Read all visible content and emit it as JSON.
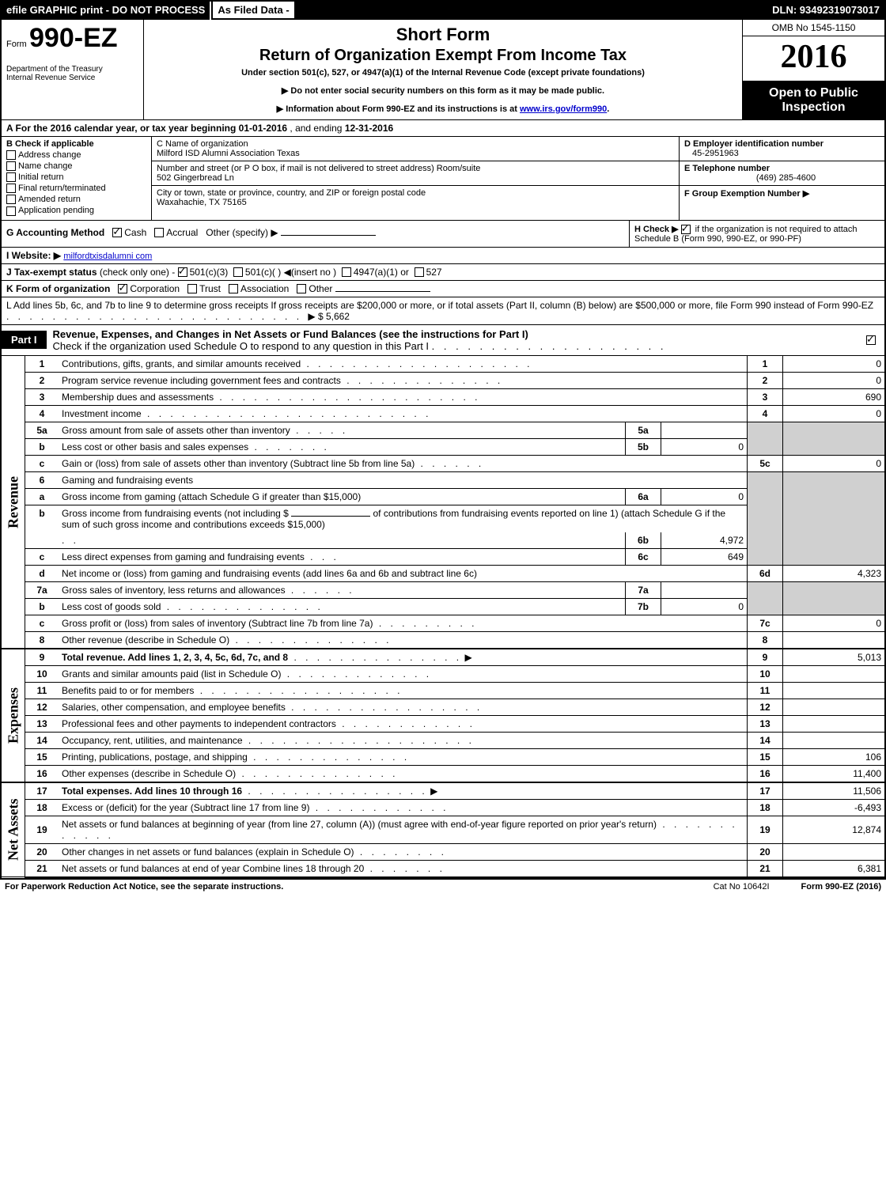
{
  "topbar": {
    "left": "efile GRAPHIC print - DO NOT PROCESS",
    "mid": "As Filed Data -",
    "right": "DLN: 93492319073017"
  },
  "header": {
    "form_word": "Form",
    "form_number": "990-EZ",
    "short_form": "Short Form",
    "return_title": "Return of Organization Exempt From Income Tax",
    "under": "Under section 501(c), 527, or 4947(a)(1) of the Internal Revenue Code (except private foundations)",
    "notice1": "▶ Do not enter social security numbers on this form as it may be made public.",
    "notice2": "▶ Information about Form 990-EZ and its instructions is at ",
    "notice2_link": "www.irs.gov/form990",
    "dept1": "Department of the Treasury",
    "dept2": "Internal Revenue Service",
    "omb": "OMB No 1545-1150",
    "year": "2016",
    "open": "Open to Public Inspection"
  },
  "rowA": {
    "label": "A  For the 2016 calendar year, or tax year beginning ",
    "begin": "01-01-2016",
    "mid": " , and ending ",
    "end": "12-31-2016"
  },
  "secB": {
    "title": "B  Check if applicable",
    "items": [
      "Address change",
      "Name change",
      "Initial return",
      "Final return/terminated",
      "Amended return",
      "Application pending"
    ]
  },
  "secC": {
    "c_label": "C Name of organization",
    "c_name": "Milford ISD Alumni Association Texas",
    "addr_label": "Number and street (or P O box, if mail is not delivered to street address)  Room/suite",
    "addr": "502 Gingerbread Ln",
    "city_label": "City or town, state or province, country, and ZIP or foreign postal code",
    "city": "Waxahachie, TX  75165"
  },
  "secD": {
    "d_label": "D Employer identification number",
    "d_val": "45-2951963",
    "e_label": "E Telephone number",
    "e_val": "(469) 285-4600",
    "f_label": "F Group Exemption Number  ▶"
  },
  "rowG": {
    "label": "G Accounting Method",
    "cash": "Cash",
    "accrual": "Accrual",
    "other": "Other (specify) ▶"
  },
  "rowH": {
    "label": "H   Check ▶",
    "text": "if the organization is not required to attach Schedule B (Form 990, 990-EZ, or 990-PF)"
  },
  "rowI": {
    "label": "I Website: ▶",
    "val": "milfordtxisdalumni com"
  },
  "rowJ": {
    "label": "J Tax-exempt status",
    "text": "(check only one) - ",
    "c3": "501(c)(3)",
    "c": "501(c)(  ) ◀(insert no )",
    "a1": "4947(a)(1) or",
    "s527": "527"
  },
  "rowK": {
    "label": "K Form of organization",
    "corp": "Corporation",
    "trust": "Trust",
    "assoc": "Association",
    "other": "Other"
  },
  "rowL": {
    "text": "L Add lines 5b, 6c, and 7b to line 9 to determine gross receipts  If gross receipts are $200,000 or more, or if total assets (Part II, column (B) below) are $500,000 or more, file Form 990 instead of Form 990-EZ",
    "amount": "▶ $ 5,662"
  },
  "partI": {
    "tab": "Part I",
    "title": "Revenue, Expenses, and Changes in Net Assets or Fund Balances (see the instructions for Part I)",
    "check_text": "Check if the organization used Schedule O to respond to any question in this Part I"
  },
  "vlabels": {
    "revenue": "Revenue",
    "expenses": "Expenses",
    "netassets": "Net Assets"
  },
  "lines": {
    "l1": {
      "num": "1",
      "text": "Contributions, gifts, grants, and similar amounts received",
      "rnum": "1",
      "rval": "0"
    },
    "l2": {
      "num": "2",
      "text": "Program service revenue including government fees and contracts",
      "rnum": "2",
      "rval": "0"
    },
    "l3": {
      "num": "3",
      "text": "Membership dues and assessments",
      "rnum": "3",
      "rval": "690"
    },
    "l4": {
      "num": "4",
      "text": "Investment income",
      "rnum": "4",
      "rval": "0"
    },
    "l5a": {
      "num": "5a",
      "text": "Gross amount from sale of assets other than inventory",
      "box": "5a",
      "boxval": ""
    },
    "l5b": {
      "num": "b",
      "text": "Less  cost or other basis and sales expenses",
      "box": "5b",
      "boxval": "0"
    },
    "l5c": {
      "num": "c",
      "text": "Gain or (loss) from sale of assets other than inventory (Subtract line 5b from line 5a)",
      "rnum": "5c",
      "rval": "0"
    },
    "l6": {
      "num": "6",
      "text": "Gaming and fundraising events"
    },
    "l6a": {
      "num": "a",
      "text": "Gross income from gaming (attach Schedule G if greater than $15,000)",
      "box": "6a",
      "boxval": "0"
    },
    "l6b": {
      "num": "b",
      "text": "Gross income from fundraising events (not including $ ",
      "text2": " of contributions from fundraising events reported on line 1) (attach Schedule G if the sum of such gross income and contributions exceeds $15,000)",
      "box": "6b",
      "boxval": "4,972"
    },
    "l6c": {
      "num": "c",
      "text": "Less  direct expenses from gaming and fundraising events",
      "box": "6c",
      "boxval": "649"
    },
    "l6d": {
      "num": "d",
      "text": "Net income or (loss) from gaming and fundraising events (add lines 6a and 6b and subtract line 6c)",
      "rnum": "6d",
      "rval": "4,323"
    },
    "l7a": {
      "num": "7a",
      "text": "Gross sales of inventory, less returns and allowances",
      "box": "7a",
      "boxval": ""
    },
    "l7b": {
      "num": "b",
      "text": "Less  cost of goods sold",
      "box": "7b",
      "boxval": "0"
    },
    "l7c": {
      "num": "c",
      "text": "Gross profit or (loss) from sales of inventory (Subtract line 7b from line 7a)",
      "rnum": "7c",
      "rval": "0"
    },
    "l8": {
      "num": "8",
      "text": "Other revenue (describe in Schedule O)",
      "rnum": "8",
      "rval": ""
    },
    "l9": {
      "num": "9",
      "text": "Total revenue. Add lines 1, 2, 3, 4, 5c, 6d, 7c, and 8",
      "rnum": "9",
      "rval": "5,013"
    },
    "l10": {
      "num": "10",
      "text": "Grants and similar amounts paid (list in Schedule O)",
      "rnum": "10",
      "rval": ""
    },
    "l11": {
      "num": "11",
      "text": "Benefits paid to or for members",
      "rnum": "11",
      "rval": ""
    },
    "l12": {
      "num": "12",
      "text": "Salaries, other compensation, and employee benefits",
      "rnum": "12",
      "rval": ""
    },
    "l13": {
      "num": "13",
      "text": "Professional fees and other payments to independent contractors",
      "rnum": "13",
      "rval": ""
    },
    "l14": {
      "num": "14",
      "text": "Occupancy, rent, utilities, and maintenance",
      "rnum": "14",
      "rval": ""
    },
    "l15": {
      "num": "15",
      "text": "Printing, publications, postage, and shipping",
      "rnum": "15",
      "rval": "106"
    },
    "l16": {
      "num": "16",
      "text": "Other expenses (describe in Schedule O)",
      "rnum": "16",
      "rval": "11,400"
    },
    "l17": {
      "num": "17",
      "text": "Total expenses. Add lines 10 through 16",
      "rnum": "17",
      "rval": "11,506"
    },
    "l18": {
      "num": "18",
      "text": "Excess or (deficit) for the year (Subtract line 17 from line 9)",
      "rnum": "18",
      "rval": "-6,493"
    },
    "l19": {
      "num": "19",
      "text": "Net assets or fund balances at beginning of year (from line 27, column (A)) (must agree with end-of-year figure reported on prior year's return)",
      "rnum": "19",
      "rval": "12,874"
    },
    "l20": {
      "num": "20",
      "text": "Other changes in net assets or fund balances (explain in Schedule O)",
      "rnum": "20",
      "rval": ""
    },
    "l21": {
      "num": "21",
      "text": "Net assets or fund balances at end of year  Combine lines 18 through 20",
      "rnum": "21",
      "rval": "6,381"
    }
  },
  "footer": {
    "left": "For Paperwork Reduction Act Notice, see the separate instructions.",
    "mid": "Cat No  10642I",
    "right": "Form 990-EZ (2016)"
  }
}
